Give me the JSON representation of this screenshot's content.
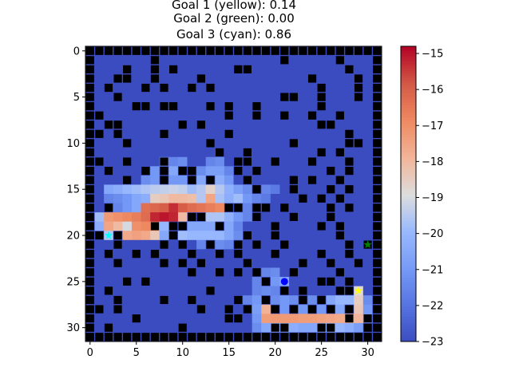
{
  "chart_data": {
    "type": "heatmap",
    "title_lines": [
      "Goal 1 (yellow): 0.14",
      "Goal 2 (green): 0.00",
      "Goal 3 (cyan): 0.86"
    ],
    "grid_size": 32,
    "xlim": [
      -0.5,
      31.5
    ],
    "ylim": [
      31.5,
      -0.5
    ],
    "x_ticks": [
      0,
      5,
      10,
      15,
      20,
      25,
      30
    ],
    "y_ticks": [
      0,
      5,
      10,
      15,
      20,
      25,
      30
    ],
    "colormap": "coolwarm",
    "colorbar_range": [
      -23,
      -14.8
    ],
    "colorbar_ticks": [
      -15,
      -16,
      -17,
      -18,
      -19,
      -20,
      -21,
      -22,
      -23
    ],
    "background_value": -23,
    "walls": [
      [
        0,
        3
      ],
      [
        0,
        13
      ],
      [
        0,
        22
      ],
      [
        1,
        7
      ],
      [
        1,
        21
      ],
      [
        1,
        27
      ],
      [
        2,
        4
      ],
      [
        2,
        7
      ],
      [
        2,
        9
      ],
      [
        2,
        16
      ],
      [
        2,
        17
      ],
      [
        2,
        28
      ],
      [
        3,
        3
      ],
      [
        3,
        4
      ],
      [
        3,
        7
      ],
      [
        3,
        12
      ],
      [
        3,
        24
      ],
      [
        3,
        29
      ],
      [
        4,
        2
      ],
      [
        4,
        6
      ],
      [
        4,
        8
      ],
      [
        4,
        11
      ],
      [
        4,
        13
      ],
      [
        4,
        25
      ],
      [
        4,
        29
      ],
      [
        5,
        3
      ],
      [
        5,
        21
      ],
      [
        5,
        22
      ],
      [
        5,
        25
      ],
      [
        5,
        29
      ],
      [
        6,
        5
      ],
      [
        6,
        6
      ],
      [
        6,
        8
      ],
      [
        6,
        9
      ],
      [
        6,
        13
      ],
      [
        6,
        15
      ],
      [
        6,
        18
      ],
      [
        6,
        25
      ],
      [
        7,
        1
      ],
      [
        7,
        15
      ],
      [
        7,
        18
      ],
      [
        7,
        21
      ],
      [
        7,
        24
      ],
      [
        7,
        27
      ],
      [
        8,
        2
      ],
      [
        8,
        3
      ],
      [
        8,
        10
      ],
      [
        8,
        12
      ],
      [
        8,
        25
      ],
      [
        8,
        26
      ],
      [
        9,
        1
      ],
      [
        9,
        3
      ],
      [
        9,
        8
      ],
      [
        9,
        15
      ],
      [
        9,
        28
      ],
      [
        10,
        4
      ],
      [
        10,
        13
      ],
      [
        10,
        22
      ],
      [
        10,
        28
      ],
      [
        10,
        29
      ],
      [
        11,
        14
      ],
      [
        11,
        17
      ],
      [
        11,
        25
      ],
      [
        11,
        27
      ],
      [
        12,
        1
      ],
      [
        12,
        4
      ],
      [
        12,
        8
      ],
      [
        12,
        16
      ],
      [
        12,
        17
      ],
      [
        12,
        20
      ],
      [
        12,
        24
      ],
      [
        12,
        28
      ],
      [
        13,
        2
      ],
      [
        13,
        6
      ],
      [
        13,
        8
      ],
      [
        13,
        10
      ],
      [
        13,
        11
      ],
      [
        13,
        16
      ],
      [
        13,
        18
      ],
      [
        13,
        26
      ],
      [
        13,
        28
      ],
      [
        14,
        4
      ],
      [
        14,
        8
      ],
      [
        14,
        11
      ],
      [
        14,
        13
      ],
      [
        14,
        17
      ],
      [
        14,
        22
      ],
      [
        14,
        24
      ],
      [
        14,
        27
      ],
      [
        15,
        18
      ],
      [
        15,
        22
      ],
      [
        15,
        26
      ],
      [
        15,
        28
      ],
      [
        16,
        23
      ],
      [
        16,
        25
      ],
      [
        16,
        27
      ],
      [
        17,
        2
      ],
      [
        17,
        15
      ],
      [
        17,
        16
      ],
      [
        17,
        18
      ],
      [
        17,
        19
      ],
      [
        17,
        21
      ],
      [
        17,
        26
      ],
      [
        17,
        28
      ],
      [
        18,
        11
      ],
      [
        18,
        12
      ],
      [
        18,
        18
      ],
      [
        18,
        22
      ],
      [
        18,
        26
      ],
      [
        19,
        7
      ],
      [
        19,
        9
      ],
      [
        19,
        10
      ],
      [
        19,
        14
      ],
      [
        19,
        20
      ],
      [
        19,
        25
      ],
      [
        19,
        27
      ],
      [
        20,
        1
      ],
      [
        20,
        3
      ],
      [
        20,
        9
      ],
      [
        20,
        17
      ],
      [
        20,
        20
      ],
      [
        20,
        27
      ],
      [
        21,
        3
      ],
      [
        21,
        8
      ],
      [
        21,
        10
      ],
      [
        21,
        13
      ],
      [
        21,
        16
      ],
      [
        21,
        18
      ],
      [
        21,
        21
      ],
      [
        21,
        28
      ],
      [
        21,
        30
      ],
      [
        22,
        2
      ],
      [
        22,
        5
      ],
      [
        22,
        7
      ],
      [
        22,
        11
      ],
      [
        22,
        14
      ],
      [
        22,
        16
      ],
      [
        22,
        20
      ],
      [
        22,
        25
      ],
      [
        22,
        28
      ],
      [
        23,
        3
      ],
      [
        23,
        8
      ],
      [
        23,
        10
      ],
      [
        23,
        12
      ],
      [
        23,
        17
      ],
      [
        23,
        23
      ],
      [
        23,
        26
      ],
      [
        23,
        29
      ],
      [
        24,
        11
      ],
      [
        24,
        14
      ],
      [
        24,
        16
      ],
      [
        24,
        18
      ],
      [
        24,
        22
      ],
      [
        24,
        27
      ],
      [
        25,
        4
      ],
      [
        25,
        6
      ],
      [
        25,
        19
      ],
      [
        25,
        25
      ],
      [
        25,
        26
      ],
      [
        25,
        28
      ],
      [
        26,
        2
      ],
      [
        26,
        13
      ],
      [
        26,
        21
      ],
      [
        26,
        23
      ],
      [
        26,
        27
      ],
      [
        26,
        28
      ],
      [
        27,
        3
      ],
      [
        27,
        8
      ],
      [
        27,
        11
      ],
      [
        27,
        16
      ],
      [
        27,
        19
      ],
      [
        27,
        23
      ],
      [
        27,
        25
      ],
      [
        28,
        1
      ],
      [
        28,
        3
      ],
      [
        28,
        12
      ],
      [
        28,
        15
      ],
      [
        28,
        17
      ],
      [
        28,
        20
      ],
      [
        28,
        22
      ],
      [
        28,
        24
      ],
      [
        28,
        26
      ],
      [
        28,
        28
      ],
      [
        29,
        5
      ],
      [
        29,
        15
      ],
      [
        29,
        16
      ],
      [
        29,
        28
      ],
      [
        29,
        30
      ],
      [
        30,
        2
      ],
      [
        30,
        10
      ],
      [
        30,
        20
      ],
      [
        30,
        21
      ],
      [
        30,
        25
      ],
      [
        30,
        26
      ],
      [
        30,
        30
      ]
    ],
    "hot_cells": [
      {
        "row": 12,
        "cells": [
          [
            8,
            -21.5
          ],
          [
            9,
            -21.5
          ],
          [
            10,
            -21.3
          ],
          [
            13,
            -21.5
          ],
          [
            14,
            -21.3
          ]
        ]
      },
      {
        "row": 13,
        "cells": [
          [
            7,
            -21.0
          ],
          [
            9,
            -20.5
          ],
          [
            12,
            -21.3
          ],
          [
            13,
            -20.8
          ],
          [
            14,
            -20.8
          ],
          [
            15,
            -21.5
          ]
        ]
      },
      {
        "row": 14,
        "cells": [
          [
            6,
            -21.3
          ],
          [
            7,
            -21.0
          ],
          [
            9,
            -21.0
          ],
          [
            10,
            -21.0
          ],
          [
            12,
            -20.5
          ],
          [
            14,
            -20.3
          ],
          [
            15,
            -21.0
          ]
        ]
      },
      {
        "row": 15,
        "cells": [
          [
            2,
            -20.5
          ],
          [
            3,
            -20.3
          ],
          [
            4,
            -20.0
          ],
          [
            5,
            -19.8
          ],
          [
            6,
            -19.6
          ],
          [
            7,
            -19.4
          ],
          [
            8,
            -19.3
          ],
          [
            9,
            -19.2
          ],
          [
            10,
            -19.3
          ],
          [
            11,
            -19.8
          ],
          [
            12,
            -19.5
          ],
          [
            13,
            -18.6
          ],
          [
            14,
            -19.5
          ],
          [
            15,
            -20.2
          ],
          [
            16,
            -20.8
          ],
          [
            17,
            -21.3
          ],
          [
            19,
            -21.5
          ],
          [
            20,
            -21.8
          ]
        ]
      },
      {
        "row": 16,
        "cells": [
          [
            2,
            -21.5
          ],
          [
            3,
            -21.3
          ],
          [
            4,
            -21.0
          ],
          [
            5,
            -20.5
          ],
          [
            6,
            -20.3
          ],
          [
            7,
            -18.5
          ],
          [
            8,
            -18.3
          ],
          [
            9,
            -18.0
          ],
          [
            10,
            -18.0
          ],
          [
            11,
            -18.1
          ],
          [
            12,
            -19.5
          ],
          [
            13,
            -17.5
          ],
          [
            14,
            -19.7
          ],
          [
            15,
            -20.3
          ],
          [
            16,
            -19.8
          ],
          [
            17,
            -21.0
          ],
          [
            18,
            -21.5
          ],
          [
            19,
            -21.8
          ]
        ]
      },
      {
        "row": 17,
        "cells": [
          [
            3,
            -21.5
          ],
          [
            4,
            -21.0
          ],
          [
            5,
            -20.5
          ],
          [
            6,
            -16.3
          ],
          [
            7,
            -16.1
          ],
          [
            8,
            -15.9
          ],
          [
            9,
            -15.3
          ],
          [
            10,
            -15.9
          ],
          [
            11,
            -16.2
          ],
          [
            12,
            -16.4
          ],
          [
            13,
            -16.6
          ],
          [
            14,
            -16.8
          ],
          [
            17,
            -21.5
          ]
        ]
      },
      {
        "row": 18,
        "cells": [
          [
            1,
            -19.8
          ],
          [
            2,
            -17.2
          ],
          [
            3,
            -17.0
          ],
          [
            4,
            -16.8
          ],
          [
            5,
            -16.6
          ],
          [
            6,
            -16.2
          ],
          [
            7,
            -15.2
          ],
          [
            8,
            -15.0
          ],
          [
            9,
            -15.2
          ],
          [
            10,
            -18.0
          ],
          [
            13,
            -19.6
          ],
          [
            14,
            -19.6
          ],
          [
            15,
            -20.2
          ],
          [
            16,
            -21.0
          ],
          [
            17,
            -21.5
          ]
        ]
      },
      {
        "row": 19,
        "cells": [
          [
            1,
            -20.3
          ],
          [
            2,
            -17.5
          ],
          [
            3,
            -18.0
          ],
          [
            4,
            -19.0
          ],
          [
            5,
            -17.0
          ],
          [
            6,
            -16.8
          ],
          [
            7,
            -17.0
          ],
          [
            8,
            -20.0
          ],
          [
            11,
            -20.5
          ],
          [
            12,
            -20.5
          ],
          [
            13,
            -20.5
          ],
          [
            15,
            -20.5
          ],
          [
            16,
            -21.5
          ]
        ]
      },
      {
        "row": 20,
        "cells": [
          [
            2,
            -19.5
          ],
          [
            4,
            -17.6
          ],
          [
            5,
            -17.4
          ],
          [
            6,
            -17.6
          ],
          [
            7,
            -18.3
          ],
          [
            8,
            -20.5
          ],
          [
            10,
            -19.8
          ],
          [
            11,
            -20.0
          ],
          [
            12,
            -20.0
          ],
          [
            13,
            -20.0
          ],
          [
            14,
            -20.0
          ],
          [
            15,
            -20.5
          ],
          [
            16,
            -21.3
          ]
        ]
      },
      {
        "row": 21,
        "cells": [
          [
            12,
            -21.5
          ],
          [
            14,
            -21.3
          ],
          [
            15,
            -21.5
          ]
        ]
      },
      {
        "row": 24,
        "cells": [
          [
            19,
            -21.5
          ],
          [
            20,
            -21.3
          ]
        ]
      },
      {
        "row": 25,
        "cells": [
          [
            18,
            -21.5
          ],
          [
            20,
            -21.0
          ],
          [
            21,
            -20.5
          ]
        ]
      },
      {
        "row": 26,
        "cells": [
          [
            18,
            -21.5
          ],
          [
            19,
            -21.3
          ],
          [
            20,
            -21.5
          ],
          [
            29,
            -18.8
          ]
        ]
      },
      {
        "row": 27,
        "cells": [
          [
            17,
            -21.5
          ],
          [
            18,
            -21.0
          ],
          [
            20,
            -21.3
          ],
          [
            21,
            -21.0
          ],
          [
            22,
            -21.3
          ],
          [
            24,
            -21.3
          ],
          [
            26,
            -20.5
          ],
          [
            27,
            -20.0
          ],
          [
            28,
            -20.0
          ],
          [
            29,
            -18.5
          ],
          [
            30,
            -21.3
          ]
        ]
      },
      {
        "row": 28,
        "cells": [
          [
            18,
            -20.8
          ],
          [
            19,
            -17.8
          ],
          [
            21,
            -21.0
          ],
          [
            23,
            -21.0
          ],
          [
            25,
            -21.0
          ],
          [
            27,
            -20.5
          ],
          [
            29,
            -18.3
          ],
          [
            30,
            -21.0
          ]
        ]
      },
      {
        "row": 29,
        "cells": [
          [
            18,
            -21.0
          ],
          [
            19,
            -17.3
          ],
          [
            20,
            -17.2
          ],
          [
            21,
            -17.2
          ],
          [
            22,
            -17.2
          ],
          [
            23,
            -17.3
          ],
          [
            24,
            -17.3
          ],
          [
            25,
            -17.4
          ],
          [
            26,
            -17.5
          ],
          [
            27,
            -17.6
          ],
          [
            28,
            -17.7
          ],
          [
            29,
            -17.9
          ],
          [
            30,
            -21.0
          ]
        ]
      },
      {
        "row": 30,
        "cells": [
          [
            18,
            -21.3
          ],
          [
            19,
            -20.5
          ],
          [
            20,
            -20.3
          ],
          [
            21,
            -20.3
          ],
          [
            22,
            -20.3
          ],
          [
            23,
            -20.5
          ],
          [
            24,
            -20.5
          ],
          [
            25,
            -20.5
          ],
          [
            26,
            -20.0
          ],
          [
            27,
            -20.0
          ],
          [
            28,
            -20.3
          ],
          [
            29,
            -20.8
          ]
        ]
      }
    ],
    "markers": [
      {
        "label": "agent",
        "x": 21,
        "y": 25,
        "shape": "circle",
        "color": "#0000ff"
      },
      {
        "label": "goal-1-yellow",
        "x": 29,
        "y": 26,
        "shape": "star",
        "color": "#ffff00"
      },
      {
        "label": "goal-2-green",
        "x": 30,
        "y": 21,
        "shape": "star",
        "color": "#008000"
      },
      {
        "label": "goal-3-cyan",
        "x": 2,
        "y": 20,
        "shape": "star",
        "color": "#00ffff"
      }
    ]
  }
}
